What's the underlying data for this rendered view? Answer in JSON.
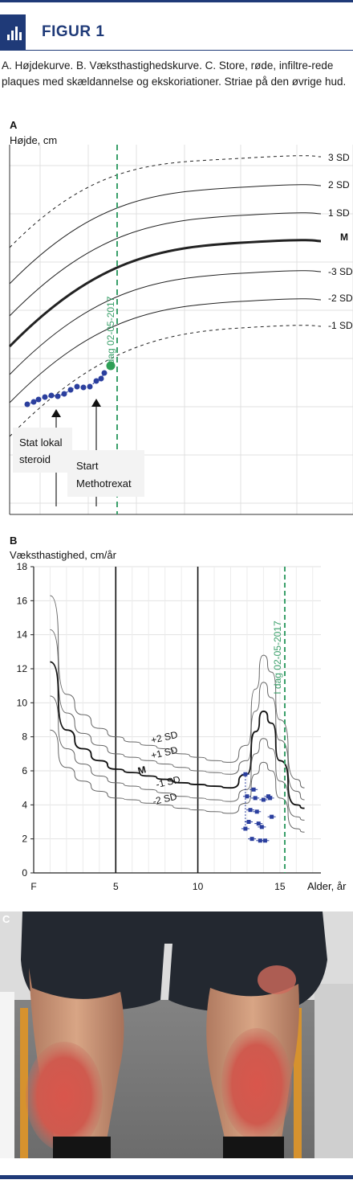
{
  "figure": {
    "title": "FIGUR 1",
    "caption": "A. Højdekurve.  B. Væksthastighedskurve.  C. Store, røde, infiltre-rede plaques med skældannelse og ekskoriationer. Striae på den øvrige hud.",
    "accent_color": "#1f3a78",
    "icon": "bar-chart-icon"
  },
  "panel_c": {
    "label": "C",
    "description_icon": "photo-legs"
  },
  "chart_data": [
    {
      "type": "line",
      "panel": "A",
      "ylabel": "Højde, cm",
      "grid": true,
      "curve_labels": [
        "3 SD",
        "2 SD",
        "1 SD",
        "M",
        "-3 SD",
        "-2 SD",
        "-1 SD"
      ],
      "vertical_marker": {
        "label": "I dag 02-05-2017",
        "color": "#3aa06a"
      },
      "annotations": [
        "Stat lokal steroid",
        "Start Methotrexat"
      ],
      "series": [
        {
          "name": "M",
          "style": "bold"
        },
        {
          "name": "patient",
          "color": "#2b3f9e"
        }
      ]
    },
    {
      "type": "line",
      "panel": "B",
      "ylabel": "Væksthastighed, cm/år",
      "xlabel": "Alder, år",
      "xlim": [
        0,
        17.5
      ],
      "ylim": [
        0,
        18
      ],
      "x_ticks": [
        "F",
        "5",
        "10",
        "15"
      ],
      "y_ticks": [
        0,
        2,
        4,
        6,
        8,
        10,
        12,
        14,
        16,
        18
      ],
      "grid": true,
      "vertical_marker": {
        "x": 15.3,
        "label": "I dag 02-05-2017",
        "color": "#3aa06a"
      },
      "series": [
        {
          "name": "+2 SD",
          "x": [
            1,
            2,
            3,
            4,
            5,
            6,
            7,
            8,
            9,
            10,
            11,
            12,
            13,
            13.5,
            14,
            14.5,
            15,
            16,
            16.5
          ],
          "values": [
            16.3,
            10.5,
            9.3,
            8.5,
            8.0,
            7.7,
            7.5,
            7.3,
            7.0,
            6.8,
            6.6,
            6.5,
            7.5,
            10.8,
            12.8,
            11.8,
            9.0,
            5.5,
            5.0
          ]
        },
        {
          "name": "+1 SD",
          "x": [
            1,
            2,
            3,
            4,
            5,
            6,
            7,
            8,
            9,
            10,
            11,
            12,
            13,
            13.5,
            14,
            14.5,
            15,
            16,
            16.5
          ],
          "values": [
            14.3,
            9.4,
            8.2,
            7.5,
            7.0,
            6.8,
            6.6,
            6.4,
            6.2,
            6.0,
            5.9,
            5.8,
            6.6,
            9.5,
            11.2,
            10.3,
            7.8,
            4.8,
            4.3
          ]
        },
        {
          "name": "M",
          "x": [
            1,
            2,
            3,
            4,
            5,
            6,
            7,
            8,
            9,
            10,
            11,
            12,
            13,
            13.5,
            14,
            14.5,
            15,
            16,
            16.5
          ],
          "values": [
            12.4,
            8.4,
            7.3,
            6.6,
            6.1,
            5.9,
            5.7,
            5.5,
            5.3,
            5.2,
            5.1,
            5.0,
            5.8,
            8.3,
            9.5,
            8.8,
            6.6,
            4.0,
            3.8
          ]
        },
        {
          "name": "-1 SD",
          "x": [
            1,
            2,
            3,
            4,
            5,
            6,
            7,
            8,
            9,
            10,
            11,
            12,
            13,
            13.5,
            14,
            14.5,
            15,
            16,
            16.5
          ],
          "values": [
            10.4,
            7.3,
            6.4,
            5.7,
            5.3,
            5.1,
            4.9,
            4.7,
            4.5,
            4.4,
            4.3,
            4.2,
            4.9,
            7.0,
            7.9,
            7.3,
            5.4,
            3.3,
            3.1
          ]
        },
        {
          "name": "-2 SD",
          "x": [
            1,
            2,
            3,
            4,
            5,
            6,
            7,
            8,
            9,
            10,
            11,
            12,
            13,
            13.5,
            14,
            14.5,
            15,
            16,
            16.5
          ],
          "values": [
            8.4,
            6.2,
            5.4,
            4.8,
            4.4,
            4.3,
            4.1,
            4.0,
            3.8,
            3.7,
            3.6,
            3.5,
            4.1,
            5.8,
            6.5,
            6.0,
            4.4,
            2.6,
            2.4
          ]
        },
        {
          "name": "patient",
          "x": [
            12.9,
            13.0,
            13.1,
            13.3,
            13.4,
            13.6,
            13.8,
            13.9,
            14.0,
            14.3,
            14.5,
            12.9,
            13.2,
            13.5,
            13.7,
            14.1,
            14.4
          ],
          "values": [
            5.8,
            4.5,
            3.0,
            2.0,
            4.9,
            3.6,
            1.9,
            2.7,
            4.3,
            4.5,
            3.3,
            2.6,
            3.7,
            4.4,
            2.9,
            1.9,
            4.4
          ]
        }
      ]
    }
  ]
}
